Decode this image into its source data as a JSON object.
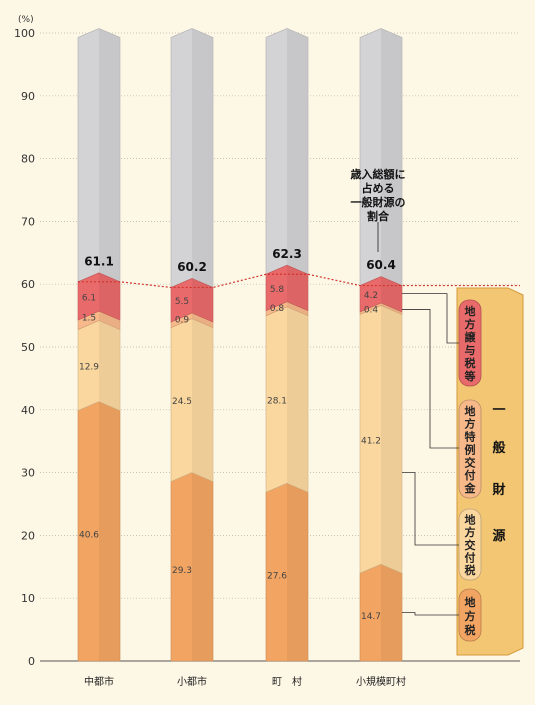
{
  "chart_data": {
    "type": "bar",
    "stacked": true,
    "unit": "(%)",
    "ylim": [
      0,
      100
    ],
    "yticks": [
      0,
      10,
      20,
      30,
      40,
      50,
      60,
      70,
      80,
      90,
      100
    ],
    "grid": true,
    "categories": [
      "中都市",
      "小都市",
      "町　村",
      "小規模町村"
    ],
    "series": [
      {
        "name": "地方税",
        "color": "#f2a563",
        "values": [
          40.6,
          29.3,
          27.6,
          14.7
        ]
      },
      {
        "name": "地方交付税",
        "color": "#fbd7a0",
        "values": [
          12.9,
          24.5,
          28.1,
          41.2
        ]
      },
      {
        "name": "地方特例交付金",
        "color": "#f7b98a",
        "values": [
          1.5,
          0.9,
          0.8,
          0.4
        ]
      },
      {
        "name": "地方譲与税等",
        "color": "#e96a6a",
        "values": [
          6.1,
          5.5,
          5.8,
          4.2
        ]
      }
    ],
    "totals": [
      "61.1",
      "60.2",
      "62.3",
      "60.4"
    ],
    "remainder_color": "#d3d3d6",
    "annotation": [
      "歳入総額に",
      "占める",
      "一般財源の",
      "割合"
    ],
    "group_label": [
      "一",
      "般",
      "財",
      "源"
    ]
  }
}
